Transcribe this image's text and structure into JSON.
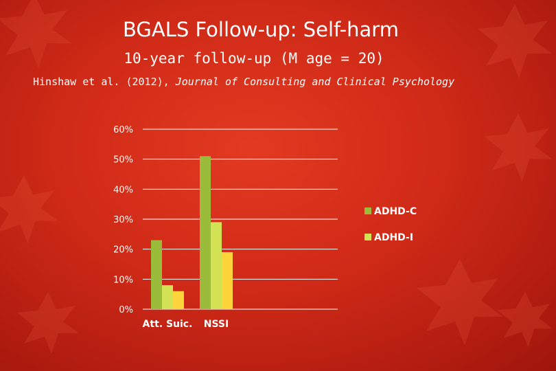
{
  "slide": {
    "title": "BGALS Follow-up: Self-harm",
    "subtitle": "10-year follow-up (M age = 20)",
    "citation_authors": "Hinshaw et al. (2012),",
    "citation_journal": "Journal of Consulting and Clinical Psychology"
  },
  "colors": {
    "background": "#cc2a18",
    "adhd_c": "#9bbb3b",
    "adhd_i": "#d3e254",
    "third_bar": "#ffd43b",
    "gridline": "#ffffff"
  },
  "chart_data": {
    "type": "bar",
    "categories": [
      "Att. Suic.",
      "NSSI"
    ],
    "series": [
      {
        "name": "ADHD-C",
        "values": [
          23,
          51
        ],
        "color": "#9bbb3b"
      },
      {
        "name": "ADHD-I",
        "values": [
          8,
          29
        ],
        "color": "#d3e254"
      },
      {
        "values": [
          6,
          19
        ],
        "color": "#ffd43b"
      }
    ],
    "ylim": [
      0,
      60
    ],
    "yticks": [
      "0%",
      "10%",
      "20%",
      "30%",
      "40%",
      "50%",
      "60%"
    ],
    "grid": true,
    "legend_position": "right"
  }
}
